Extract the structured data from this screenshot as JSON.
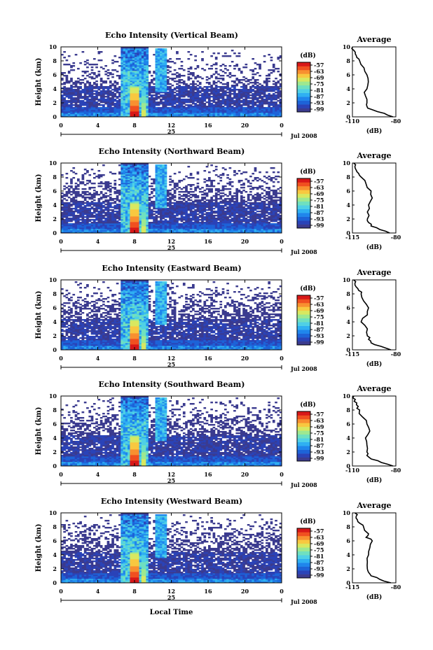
{
  "colorbar": {
    "unit": "(dB)",
    "ticks": [
      "-57",
      "-63",
      "-69",
      "-75",
      "-81",
      "-87",
      "-93",
      "-99"
    ],
    "colors": [
      "#3b3b8f",
      "#2a43b8",
      "#1d63d8",
      "#1f86ec",
      "#2fb0f2",
      "#4fd0e6",
      "#6fe0c0",
      "#9ee890",
      "#d8e860",
      "#f8c840",
      "#f89030",
      "#f05020",
      "#d81818"
    ]
  },
  "x_axis": {
    "ticks": [
      "0",
      "4",
      "8",
      "12",
      "16",
      "20",
      "0"
    ],
    "day_label": "25",
    "date_label": "Jul 2008",
    "xlabel": "Local Time",
    "range": [
      0,
      24
    ]
  },
  "y_axis": {
    "label": "Height (km)",
    "ticks": [
      "0",
      "2",
      "4",
      "6",
      "8",
      "10"
    ],
    "range": [
      0,
      10
    ]
  },
  "panels": [
    {
      "title": "Echo Intensity (Vertical Beam)",
      "avg_title": "Average",
      "avg_xticks": [
        "-110",
        "-80"
      ],
      "avg_xlabel": "(dB)"
    },
    {
      "title": "Echo Intensity (Northward Beam)",
      "avg_title": "Average",
      "avg_xticks": [
        "-115",
        "-80"
      ],
      "avg_xlabel": "(dB)"
    },
    {
      "title": "Echo Intensity (Eastward Beam)",
      "avg_title": "Average",
      "avg_xticks": [
        "-115",
        "-80"
      ],
      "avg_xlabel": "(dB)"
    },
    {
      "title": "Echo Intensity (Southward Beam)",
      "avg_title": "Average",
      "avg_xticks": [
        "-110",
        "-80"
      ],
      "avg_xlabel": "(dB)"
    },
    {
      "title": "Echo Intensity (Westward Beam)",
      "avg_title": "Average",
      "avg_xticks": [
        "-115",
        "-80"
      ],
      "avg_xlabel": "(dB)"
    }
  ],
  "chart_data": [
    {
      "type": "heatmap",
      "title": "Echo Intensity (Vertical Beam)",
      "ylabel": "Height (km)",
      "xlabel": "",
      "xlim": [
        0,
        24
      ],
      "ylim": [
        0,
        10
      ],
      "colorbar_range_db": [
        -99,
        -57
      ],
      "average_profile": {
        "title": "Average",
        "xlabel": "(dB)",
        "xlim": [
          -110,
          -80
        ],
        "height_km": [
          0,
          0.5,
          1,
          1.5,
          2,
          3,
          4,
          5,
          6,
          7,
          8,
          8.5,
          9,
          9.5,
          10
        ],
        "db": [
          -82,
          -88,
          -96,
          -100,
          -100,
          -101,
          -100,
          -99,
          -100,
          -102,
          -105,
          -107,
          -108,
          -109,
          -110
        ]
      }
    },
    {
      "type": "heatmap",
      "title": "Echo Intensity (Northward Beam)",
      "ylabel": "Height (km)",
      "xlabel": "",
      "xlim": [
        0,
        24
      ],
      "ylim": [
        0,
        10
      ],
      "colorbar_range_db": [
        -99,
        -57
      ],
      "average_profile": {
        "title": "Average",
        "xlabel": "(dB)",
        "xlim": [
          -115,
          -80
        ],
        "height_km": [
          0,
          0.5,
          1,
          1.5,
          2,
          3,
          4,
          5,
          6,
          7,
          8,
          8.5,
          9,
          9.5,
          10
        ],
        "db": [
          -85,
          -93,
          -100,
          -102,
          -103,
          -103,
          -102,
          -99,
          -100,
          -104,
          -108,
          -110,
          -112,
          -113,
          -114
        ]
      }
    },
    {
      "type": "heatmap",
      "title": "Echo Intensity (Eastward Beam)",
      "ylabel": "Height (km)",
      "xlabel": "",
      "xlim": [
        0,
        24
      ],
      "ylim": [
        0,
        10
      ],
      "colorbar_range_db": [
        -99,
        -57
      ],
      "average_profile": {
        "title": "Average",
        "xlabel": "(dB)",
        "xlim": [
          -115,
          -80
        ],
        "height_km": [
          0,
          0.5,
          1,
          1.5,
          2,
          3,
          4,
          5,
          6,
          7,
          8,
          8.5,
          9,
          9.5,
          10
        ],
        "db": [
          -84,
          -92,
          -100,
          -102,
          -103,
          -103,
          -108,
          -103,
          -102,
          -106,
          -108,
          -110,
          -112,
          -113,
          -114
        ]
      }
    },
    {
      "type": "heatmap",
      "title": "Echo Intensity (Southward Beam)",
      "ylabel": "Height (km)",
      "xlabel": "",
      "xlim": [
        0,
        24
      ],
      "ylim": [
        0,
        10
      ],
      "colorbar_range_db": [
        -99,
        -57
      ],
      "average_profile": {
        "title": "Average",
        "xlabel": "(dB)",
        "xlim": [
          -110,
          -80
        ],
        "height_km": [
          0,
          0.5,
          1,
          1.5,
          2,
          3,
          4,
          5,
          6,
          7,
          8,
          8.5,
          9,
          9.5,
          10
        ],
        "db": [
          -82,
          -90,
          -97,
          -100,
          -100,
          -100,
          -101,
          -98,
          -100,
          -103,
          -105,
          -106,
          -107,
          -108,
          -109
        ]
      }
    },
    {
      "type": "heatmap",
      "title": "Echo Intensity (Westward Beam)",
      "ylabel": "Height (km)",
      "xlabel": "Local Time",
      "xlim": [
        0,
        24
      ],
      "ylim": [
        0,
        10
      ],
      "colorbar_range_db": [
        -99,
        -57
      ],
      "average_profile": {
        "title": "Average",
        "xlabel": "(dB)",
        "xlim": [
          -115,
          -80
        ],
        "height_km": [
          0,
          0.5,
          1,
          1.5,
          2,
          3,
          4,
          5,
          6,
          6.5,
          7,
          8,
          8.5,
          9,
          9.5,
          10
        ],
        "db": [
          -84,
          -93,
          -100,
          -102,
          -103,
          -103,
          -102,
          -101,
          -99,
          -104,
          -102,
          -106,
          -109,
          -111,
          -112,
          -113
        ]
      }
    }
  ]
}
